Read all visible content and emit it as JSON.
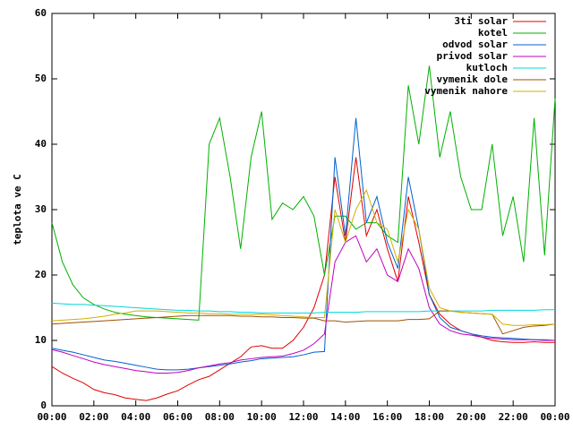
{
  "chart_data": {
    "type": "line",
    "y_label": "teplota ve C",
    "x": [
      0,
      0.5,
      1,
      1.5,
      2,
      2.5,
      3,
      3.5,
      4,
      4.5,
      5,
      5.5,
      6,
      6.5,
      7,
      7.5,
      8,
      8.5,
      9,
      9.5,
      10,
      10.5,
      11,
      11.5,
      12,
      12.5,
      13,
      13.5,
      14,
      14.5,
      15,
      15.5,
      16,
      16.5,
      17,
      17.5,
      18,
      18.5,
      19,
      19.5,
      20,
      20.5,
      21,
      21.5,
      22,
      22.5,
      23,
      23.5,
      24
    ],
    "xlim": [
      0,
      24
    ],
    "xticks": [
      {
        "value": 0,
        "label": "00:00"
      },
      {
        "value": 2,
        "label": "02:00"
      },
      {
        "value": 4,
        "label": "04:00"
      },
      {
        "value": 6,
        "label": "06:00"
      },
      {
        "value": 8,
        "label": "08:00"
      },
      {
        "value": 10,
        "label": "10:00"
      },
      {
        "value": 12,
        "label": "12:00"
      },
      {
        "value": 14,
        "label": "14:00"
      },
      {
        "value": 16,
        "label": "16:00"
      },
      {
        "value": 18,
        "label": "18:00"
      },
      {
        "value": 20,
        "label": "20:00"
      },
      {
        "value": 22,
        "label": "22:00"
      },
      {
        "value": 24,
        "label": "00:00"
      }
    ],
    "ylim": [
      0,
      60
    ],
    "yticks": [
      0,
      10,
      20,
      30,
      40,
      50,
      60
    ],
    "legend": "top-right",
    "series": [
      {
        "name": "3ti solar",
        "color": "#e00000",
        "values": [
          6,
          5,
          4.2,
          3.5,
          2.5,
          2,
          1.7,
          1.2,
          1,
          0.8,
          1.2,
          1.8,
          2.3,
          3.2,
          4,
          4.5,
          5.5,
          6.5,
          7.5,
          9,
          9.2,
          8.8,
          8.8,
          10,
          12,
          15,
          20,
          35,
          25,
          38,
          26,
          30,
          24,
          19,
          32,
          25,
          17,
          14,
          12.5,
          11.5,
          11,
          10.5,
          10,
          9.8,
          9.7,
          9.7,
          9.8,
          9.7,
          9.7
        ]
      },
      {
        "name": "kotel",
        "color": "#00b000",
        "values": [
          28,
          22,
          18.5,
          16.5,
          15.5,
          14.8,
          14.3,
          14,
          13.8,
          13.6,
          13.5,
          13.4,
          13.3,
          13.2,
          13.1,
          40,
          44,
          35,
          24,
          38,
          45,
          28.5,
          31,
          30,
          32,
          29,
          20,
          29,
          29,
          27,
          28,
          28,
          26,
          25,
          49,
          40,
          52,
          38,
          45,
          35,
          30,
          30,
          40,
          26,
          32,
          22,
          44,
          23,
          47
        ]
      },
      {
        "name": "odvod solar",
        "color": "#0060d0",
        "values": [
          8.8,
          8.5,
          8.2,
          7.8,
          7.4,
          7,
          6.8,
          6.5,
          6.2,
          5.9,
          5.6,
          5.5,
          5.5,
          5.6,
          5.8,
          6,
          6.2,
          6.4,
          6.7,
          6.9,
          7.2,
          7.3,
          7.4,
          7.5,
          7.8,
          8.2,
          8.3,
          38,
          26,
          44,
          28,
          32,
          25,
          21,
          35,
          27,
          17,
          13.5,
          12,
          11.5,
          11,
          10.7,
          10.5,
          10.4,
          10.3,
          10.2,
          10.1,
          10.1,
          10
        ]
      },
      {
        "name": "privod solar",
        "color": "#c000c0",
        "values": [
          8.6,
          8.2,
          7.7,
          7.2,
          6.7,
          6.3,
          6,
          5.7,
          5.4,
          5.2,
          5,
          5,
          5.1,
          5.4,
          5.8,
          6.1,
          6.4,
          6.6,
          7,
          7.2,
          7.4,
          7.5,
          7.6,
          8,
          8.5,
          9.5,
          11,
          22,
          25,
          26,
          22,
          24,
          20,
          19,
          24,
          21,
          15,
          12.5,
          11.5,
          11,
          10.8,
          10.5,
          10.3,
          10.2,
          10.1,
          10.1,
          10.1,
          10,
          10
        ]
      },
      {
        "name": "kutloch",
        "color": "#00d8d8",
        "values": [
          15.7,
          15.6,
          15.5,
          15.5,
          15.4,
          15.3,
          15.2,
          15.1,
          15,
          14.9,
          14.8,
          14.7,
          14.6,
          14.6,
          14.5,
          14.5,
          14.4,
          14.4,
          14.3,
          14.3,
          14.2,
          14.2,
          14.2,
          14.2,
          14.2,
          14.2,
          14.3,
          14.3,
          14.3,
          14.3,
          14.4,
          14.4,
          14.4,
          14.4,
          14.4,
          14.4,
          14.5,
          14.5,
          14.5,
          14.5,
          14.5,
          14.5,
          14.6,
          14.6,
          14.6,
          14.6,
          14.6,
          14.7,
          14.7
        ]
      },
      {
        "name": "vymenik dole",
        "color": "#a05000",
        "values": [
          12.5,
          12.6,
          12.7,
          12.8,
          12.9,
          13,
          13.1,
          13.2,
          13.3,
          13.4,
          13.5,
          13.6,
          13.7,
          13.8,
          13.8,
          13.8,
          13.8,
          13.8,
          13.7,
          13.7,
          13.6,
          13.6,
          13.5,
          13.5,
          13.4,
          13.4,
          13,
          13,
          12.8,
          12.9,
          13,
          13,
          13,
          13,
          13.2,
          13.2,
          13.3,
          14.5,
          14.5,
          14.3,
          14.2,
          14.1,
          14,
          11,
          11.5,
          12,
          12.2,
          12.3,
          12.5
        ]
      },
      {
        "name": "vymenik nahore",
        "color": "#d0b000",
        "values": [
          13,
          13.1,
          13.2,
          13.3,
          13.5,
          13.7,
          14,
          14.2,
          14.5,
          14.5,
          14.5,
          14.4,
          14.3,
          14.2,
          14.2,
          14.1,
          14.1,
          14,
          14,
          14,
          14,
          13.9,
          13.8,
          13.7,
          13.6,
          13.5,
          13.5,
          30,
          25,
          30,
          33,
          28,
          27,
          22,
          30,
          27,
          18,
          15,
          14.5,
          14.3,
          14.2,
          14.1,
          14,
          12.5,
          12.3,
          12.3,
          12.4,
          12.4,
          12.5
        ]
      }
    ]
  }
}
